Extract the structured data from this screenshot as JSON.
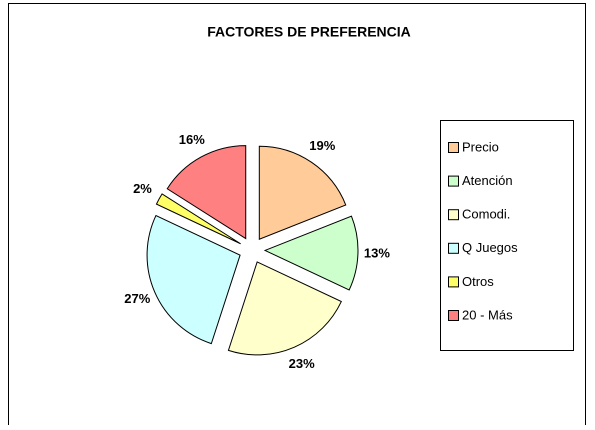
{
  "chart_data": {
    "type": "pie",
    "title": "FACTORES DE PREFERENCIA",
    "categories": [
      "Precio",
      "Atención",
      "Comodi.",
      "Q Juegos",
      "Otros",
      "20 - Más"
    ],
    "values": [
      19,
      13,
      23,
      27,
      2,
      16
    ],
    "value_labels": [
      "19%",
      "13%",
      "23%",
      "27%",
      "2%",
      "16%"
    ],
    "colors": [
      "#FFCC99",
      "#CCFFCC",
      "#FFFFCC",
      "#CCFFFF",
      "#FFFF66",
      "#FF8080"
    ],
    "legend": "right"
  }
}
